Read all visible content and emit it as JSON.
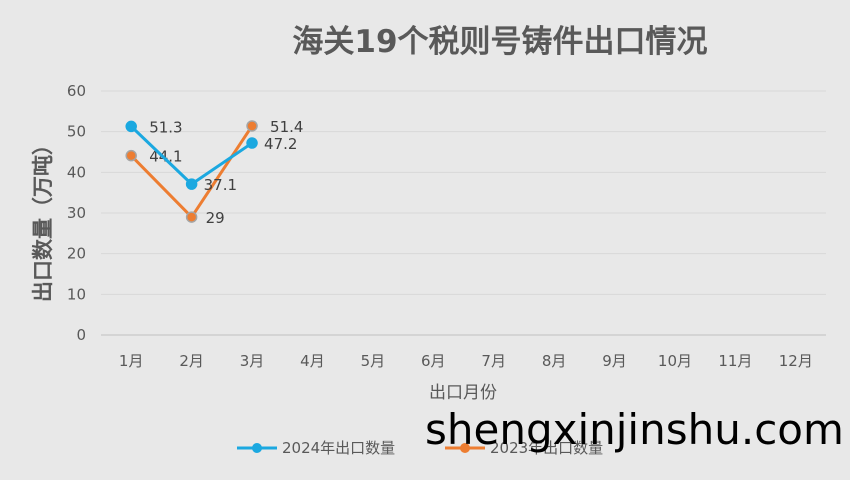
{
  "chart_data": {
    "type": "line",
    "title": "海关19个税则号铸件出口情况",
    "xlabel": "出口月份",
    "ylabel": "出口数量（万吨）",
    "categories": [
      "1月",
      "2月",
      "3月",
      "4月",
      "5月",
      "6月",
      "7月",
      "8月",
      "9月",
      "10月",
      "11月",
      "12月"
    ],
    "ylim": [
      0,
      60
    ],
    "yticks": [
      0,
      10,
      20,
      30,
      40,
      50,
      60
    ],
    "grid": true,
    "legend_position": "bottom",
    "series": [
      {
        "name": "2024年出口数量",
        "color": "#1ba8e0",
        "values": [
          51.3,
          37.1,
          47.2,
          null,
          null,
          null,
          null,
          null,
          null,
          null,
          null,
          null
        ],
        "labels": [
          "51.3",
          "37.1",
          "47.2"
        ]
      },
      {
        "name": "2023年出口数量",
        "color": "#ed7d31",
        "values": [
          44.1,
          29,
          51.4,
          null,
          null,
          null,
          null,
          null,
          null,
          null,
          null,
          null
        ],
        "labels": [
          "44.1",
          "29",
          "51.4"
        ]
      }
    ]
  },
  "watermark": "shengxinjinshu.com"
}
